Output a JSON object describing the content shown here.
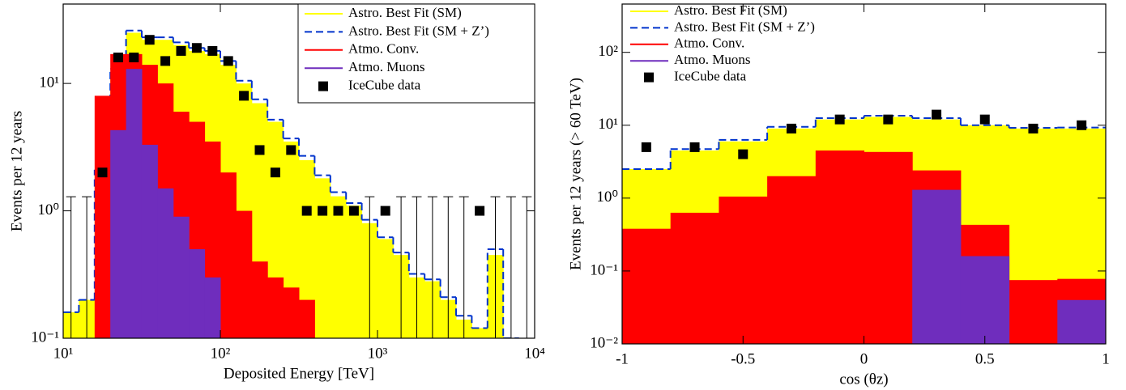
{
  "chart_data": [
    {
      "type": "histogram",
      "x_label": "Deposited Energy [TeV]",
      "y_label": "Events per 12 years",
      "xlog": true,
      "ylog": true,
      "xlim": [
        10,
        10000
      ],
      "ylim": [
        0.1,
        42
      ],
      "xticks": [
        {
          "value": 10,
          "label": "10¹"
        },
        {
          "value": 100,
          "label": "10²"
        },
        {
          "value": 1000,
          "label": "10³"
        },
        {
          "value": 10000,
          "label": "10⁴"
        }
      ],
      "yticks": [
        {
          "value": 0.1,
          "label": "10⁻¹"
        },
        {
          "value": 1,
          "label": "10⁰"
        },
        {
          "value": 10,
          "label": "10¹"
        }
      ],
      "legend": "upper right",
      "legend_frame": true,
      "bins": [
        10,
        12.59,
        15.85,
        19.95,
        25.12,
        31.62,
        39.81,
        50.12,
        63.1,
        79.43,
        100,
        125.9,
        158.5,
        199.5,
        251.2,
        316.2,
        398.1,
        501.2,
        631,
        794.3,
        1000,
        1259,
        1585,
        1995,
        2512,
        3162,
        3981,
        5012,
        6310,
        7943,
        10000
      ],
      "series": [
        {
          "name": "Astro. Best Fit (SM)",
          "color": "#ffff00",
          "style": "fill",
          "values": [
            0.16,
            0.2,
            2,
            12,
            25,
            22,
            22,
            20,
            18,
            17,
            14,
            10,
            7,
            5,
            3.5,
            2.5,
            1.8,
            1.3,
            1.1,
            0.8,
            0.6,
            0.45,
            0.3,
            0.28,
            0.2,
            0.14,
            0.12,
            0.45,
            null,
            null
          ]
        },
        {
          "name": "Astro. Best Fit (SM + Z’)",
          "color": "#0033cc",
          "style": "dashed-step",
          "values": [
            0.16,
            0.2,
            2.1,
            13,
            26,
            23,
            23,
            21,
            19,
            18,
            15,
            10.5,
            7.5,
            5.2,
            3.7,
            2.7,
            1.9,
            1.4,
            1.15,
            0.85,
            0.62,
            0.47,
            0.32,
            0.29,
            0.21,
            0.15,
            0.12,
            0.5,
            0.1,
            null
          ]
        },
        {
          "name": "Atmo. Conv.",
          "color": "#ff0000",
          "style": "fill",
          "values": [
            null,
            null,
            8,
            17,
            17,
            14,
            10,
            6,
            5,
            3.5,
            2,
            1,
            0.4,
            0.3,
            0.25,
            0.2,
            null,
            null,
            null,
            null,
            null,
            null,
            null,
            null,
            null,
            null,
            null,
            null,
            null,
            null
          ]
        },
        {
          "name": "Atmo. Muons",
          "color": "#6f2dbd",
          "style": "fill",
          "values": [
            null,
            null,
            null,
            4.3,
            13,
            3.3,
            1.5,
            0.9,
            0.5,
            0.3,
            null,
            null,
            null,
            null,
            null,
            null,
            null,
            null,
            null,
            null,
            null,
            null,
            null,
            null,
            null,
            null,
            null,
            null,
            null,
            null
          ]
        },
        {
          "name": "IceCube data",
          "color": "#000000",
          "style": "markers",
          "values": [
            null,
            null,
            2,
            16,
            16,
            22,
            15,
            18,
            19,
            18,
            15,
            8,
            3,
            2,
            3,
            1,
            1,
            1,
            1,
            null,
            1,
            null,
            null,
            null,
            null,
            null,
            1,
            null,
            null,
            null
          ],
          "upper_limits": [
            1.29,
            1.29,
            null,
            null,
            null,
            null,
            null,
            null,
            null,
            null,
            null,
            null,
            null,
            null,
            null,
            null,
            null,
            null,
            null,
            1.29,
            null,
            1.29,
            1.29,
            1.29,
            1.29,
            1.29,
            null,
            1.29,
            1.29,
            1.29
          ]
        }
      ]
    },
    {
      "type": "histogram",
      "x_label": "cos (θz)",
      "y_label": "Events per 12 years (> 60 TeV)",
      "xlog": false,
      "ylog": true,
      "xlim": [
        -1,
        1
      ],
      "ylim": [
        0.01,
        460
      ],
      "xticks": [
        -1,
        -0.5,
        0,
        0.5,
        1
      ],
      "yticks": [
        {
          "value": 0.01,
          "label": "10⁻²"
        },
        {
          "value": 0.1,
          "label": "10⁻¹"
        },
        {
          "value": 1,
          "label": "10⁰"
        },
        {
          "value": 10,
          "label": "10¹"
        },
        {
          "value": 100,
          "label": "10²"
        }
      ],
      "legend": "upper left",
      "legend_frame": false,
      "bins": [
        -1,
        -0.8,
        -0.6,
        -0.4,
        -0.2,
        0,
        0.2,
        0.4,
        0.6,
        0.8,
        1
      ],
      "series": [
        {
          "name": "Astro. Best Fit  (SM)",
          "color": "#ffff00",
          "style": "fill",
          "values": [
            2.5,
            4.5,
            6,
            9,
            12,
            13,
            12,
            10,
            9,
            9
          ]
        },
        {
          "name": "Astro. Best Fit (SM + Z’)",
          "color": "#0033cc",
          "style": "dashed-step",
          "values": [
            2.5,
            4.7,
            6.3,
            9.5,
            12.5,
            13.5,
            12.5,
            10,
            9.2,
            9.3
          ]
        },
        {
          "name": "Atmo. Conv.",
          "color": "#ff0000",
          "style": "fill",
          "values": [
            0.38,
            0.63,
            1.05,
            2,
            4.5,
            4.3,
            2.4,
            0.43,
            0.075,
            0.078
          ]
        },
        {
          "name": "Atmo. Muons",
          "color": "#6f2dbd",
          "style": "fill",
          "values": [
            null,
            null,
            null,
            null,
            null,
            null,
            1.3,
            0.16,
            null,
            0.04
          ]
        },
        {
          "name": "IceCube data",
          "color": "#000000",
          "style": "markers",
          "values": [
            5,
            5,
            4,
            9,
            12,
            12,
            14,
            12,
            9,
            10
          ]
        }
      ]
    }
  ]
}
